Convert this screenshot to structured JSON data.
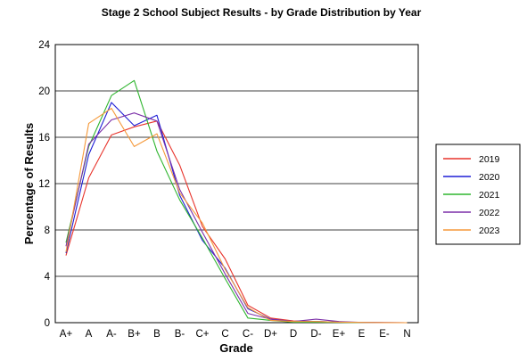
{
  "chart_data": {
    "type": "line",
    "title": "Stage 2 School Subject Results - by Grade Distribution by Year",
    "xlabel": "Grade",
    "ylabel": "Percentage of Results",
    "categories": [
      "A+",
      "A",
      "A-",
      "B+",
      "B",
      "B-",
      "C+",
      "C",
      "C-",
      "D+",
      "D",
      "D-",
      "E+",
      "E",
      "E-",
      "N"
    ],
    "ylim": [
      0,
      24
    ],
    "yticks": [
      0,
      4,
      8,
      12,
      16,
      20,
      24
    ],
    "grid": true,
    "legend_position": "right",
    "series": [
      {
        "name": "2019",
        "color": "#e8342c",
        "values": [
          5.8,
          12.5,
          16.2,
          16.9,
          17.4,
          13.6,
          8.3,
          5.5,
          1.5,
          0.4,
          0.15,
          0.1,
          0.05,
          0.02,
          0.01,
          0.0
        ]
      },
      {
        "name": "2020",
        "color": "#1f1fd6",
        "values": [
          6.0,
          14.5,
          19.0,
          17.0,
          17.9,
          11.0,
          7.1,
          4.7,
          1.2,
          0.3,
          0.1,
          0.1,
          0.05,
          0.02,
          0.01,
          0.0
        ]
      },
      {
        "name": "2021",
        "color": "#2fb52f",
        "values": [
          6.9,
          15.2,
          19.6,
          20.9,
          14.8,
          10.6,
          7.3,
          3.8,
          0.4,
          0.2,
          0.05,
          0.05,
          0.02,
          0.01,
          0.0,
          0.0
        ]
      },
      {
        "name": "2022",
        "color": "#7b2fa8",
        "values": [
          6.6,
          15.4,
          17.5,
          18.1,
          17.4,
          11.5,
          7.8,
          4.2,
          0.8,
          0.3,
          0.1,
          0.3,
          0.1,
          0.02,
          0.01,
          0.0
        ]
      },
      {
        "name": "2023",
        "color": "#f5993a",
        "values": [
          6.1,
          17.2,
          18.5,
          15.2,
          16.3,
          11.2,
          8.6,
          4.6,
          1.3,
          0.2,
          0.1,
          0.1,
          0.05,
          0.02,
          0.01,
          0.0
        ]
      }
    ]
  }
}
